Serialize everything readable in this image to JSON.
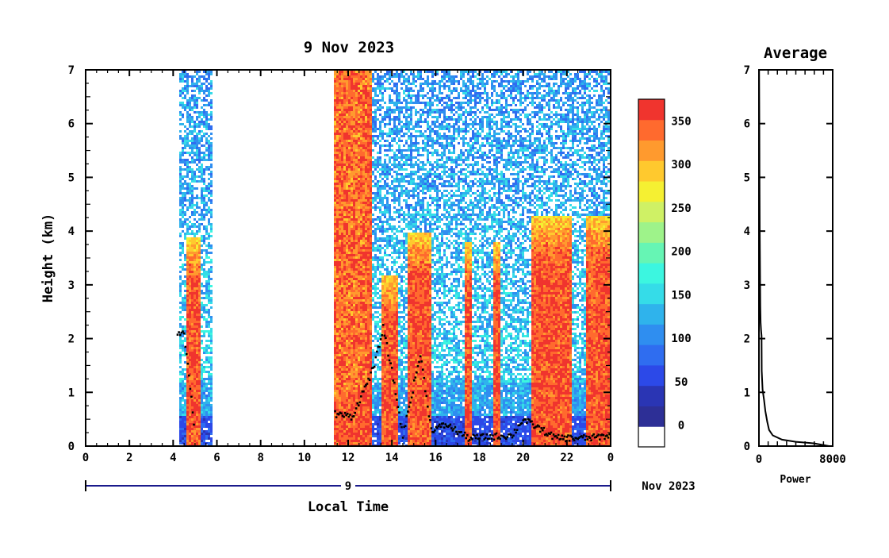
{
  "chart_data": [
    {
      "type": "heatmap",
      "title": "9 Nov 2023",
      "xlabel": "Local Time",
      "ylabel": "Height (km)",
      "xlim": [
        0,
        24
      ],
      "ylim": [
        0,
        7
      ],
      "x_ticks": [
        "0",
        "2",
        "4",
        "6",
        "8",
        "10",
        "12",
        "14",
        "16",
        "18",
        "20",
        "22",
        "0"
      ],
      "y_ticks": [
        "0",
        "1",
        "2",
        "3",
        "4",
        "5",
        "6",
        "7"
      ],
      "date_bar": {
        "day_label": "9",
        "month_label": "Nov 2023"
      },
      "colorbar": {
        "ticks": [
          "0",
          "50",
          "100",
          "150",
          "200",
          "250",
          "300",
          "350"
        ],
        "tick_values": [
          0,
          50,
          100,
          150,
          200,
          250,
          300,
          350
        ],
        "range": [
          -25,
          375
        ],
        "colors": [
          "#ffffff",
          "#2d2f96",
          "#2a35b4",
          "#2c49e8",
          "#2f6df0",
          "#2f8ef0",
          "#2fb3ec",
          "#35dce8",
          "#3cf6e0",
          "#66f5b4",
          "#9ef38a",
          "#cff165",
          "#f5f032",
          "#ffc92e",
          "#ff9a2e",
          "#ff6a2e",
          "#f0342e"
        ]
      },
      "data_coverage_hours": [
        [
          4.2,
          5.8
        ],
        [
          11.3,
          24.0
        ]
      ],
      "intense_plume_intervals_hours": [
        [
          4.5,
          5.2
        ],
        [
          11.3,
          13.0
        ],
        [
          13.5,
          14.2
        ],
        [
          14.7,
          15.7
        ],
        [
          17.3,
          17.6
        ],
        [
          18.6,
          18.9
        ],
        [
          20.3,
          22.2
        ],
        [
          22.8,
          24.0
        ]
      ],
      "boundary_layer_km": [
        {
          "x": 4.2,
          "y": 2.1
        },
        {
          "x": 4.5,
          "y": 2.1
        },
        {
          "x": 5.0,
          "y": 0.25
        },
        {
          "x": 11.4,
          "y": 0.6
        },
        {
          "x": 12.2,
          "y": 0.55
        },
        {
          "x": 13.2,
          "y": 1.5
        },
        {
          "x": 13.6,
          "y": 2.2
        },
        {
          "x": 14.0,
          "y": 1.4
        },
        {
          "x": 14.5,
          "y": 0.2
        },
        {
          "x": 15.3,
          "y": 1.7
        },
        {
          "x": 15.8,
          "y": 0.3
        },
        {
          "x": 16.5,
          "y": 0.4
        },
        {
          "x": 17.5,
          "y": 0.15
        },
        {
          "x": 19.5,
          "y": 0.2
        },
        {
          "x": 20.0,
          "y": 0.5
        },
        {
          "x": 21.5,
          "y": 0.15
        },
        {
          "x": 23.0,
          "y": 0.15
        },
        {
          "x": 24.0,
          "y": 0.2
        }
      ]
    },
    {
      "type": "line",
      "title": "Average",
      "xlabel": "Power",
      "ylabel": "",
      "xlim": [
        0,
        8000
      ],
      "ylim": [
        0,
        7
      ],
      "x_ticks": [
        "0",
        "8000"
      ],
      "series": [
        {
          "x": [
            7600,
            6000,
            4000,
            2500,
            1500,
            1100,
            900,
            700,
            560,
            400,
            300,
            280,
            230,
            180,
            150,
            120,
            90,
            60,
            40,
            20
          ],
          "y": [
            0.0,
            0.05,
            0.08,
            0.12,
            0.2,
            0.3,
            0.45,
            0.65,
            0.85,
            1.05,
            1.4,
            2.05,
            2.15,
            2.3,
            2.6,
            3.2,
            4.0,
            5.0,
            6.0,
            7.0
          ]
        }
      ]
    }
  ]
}
